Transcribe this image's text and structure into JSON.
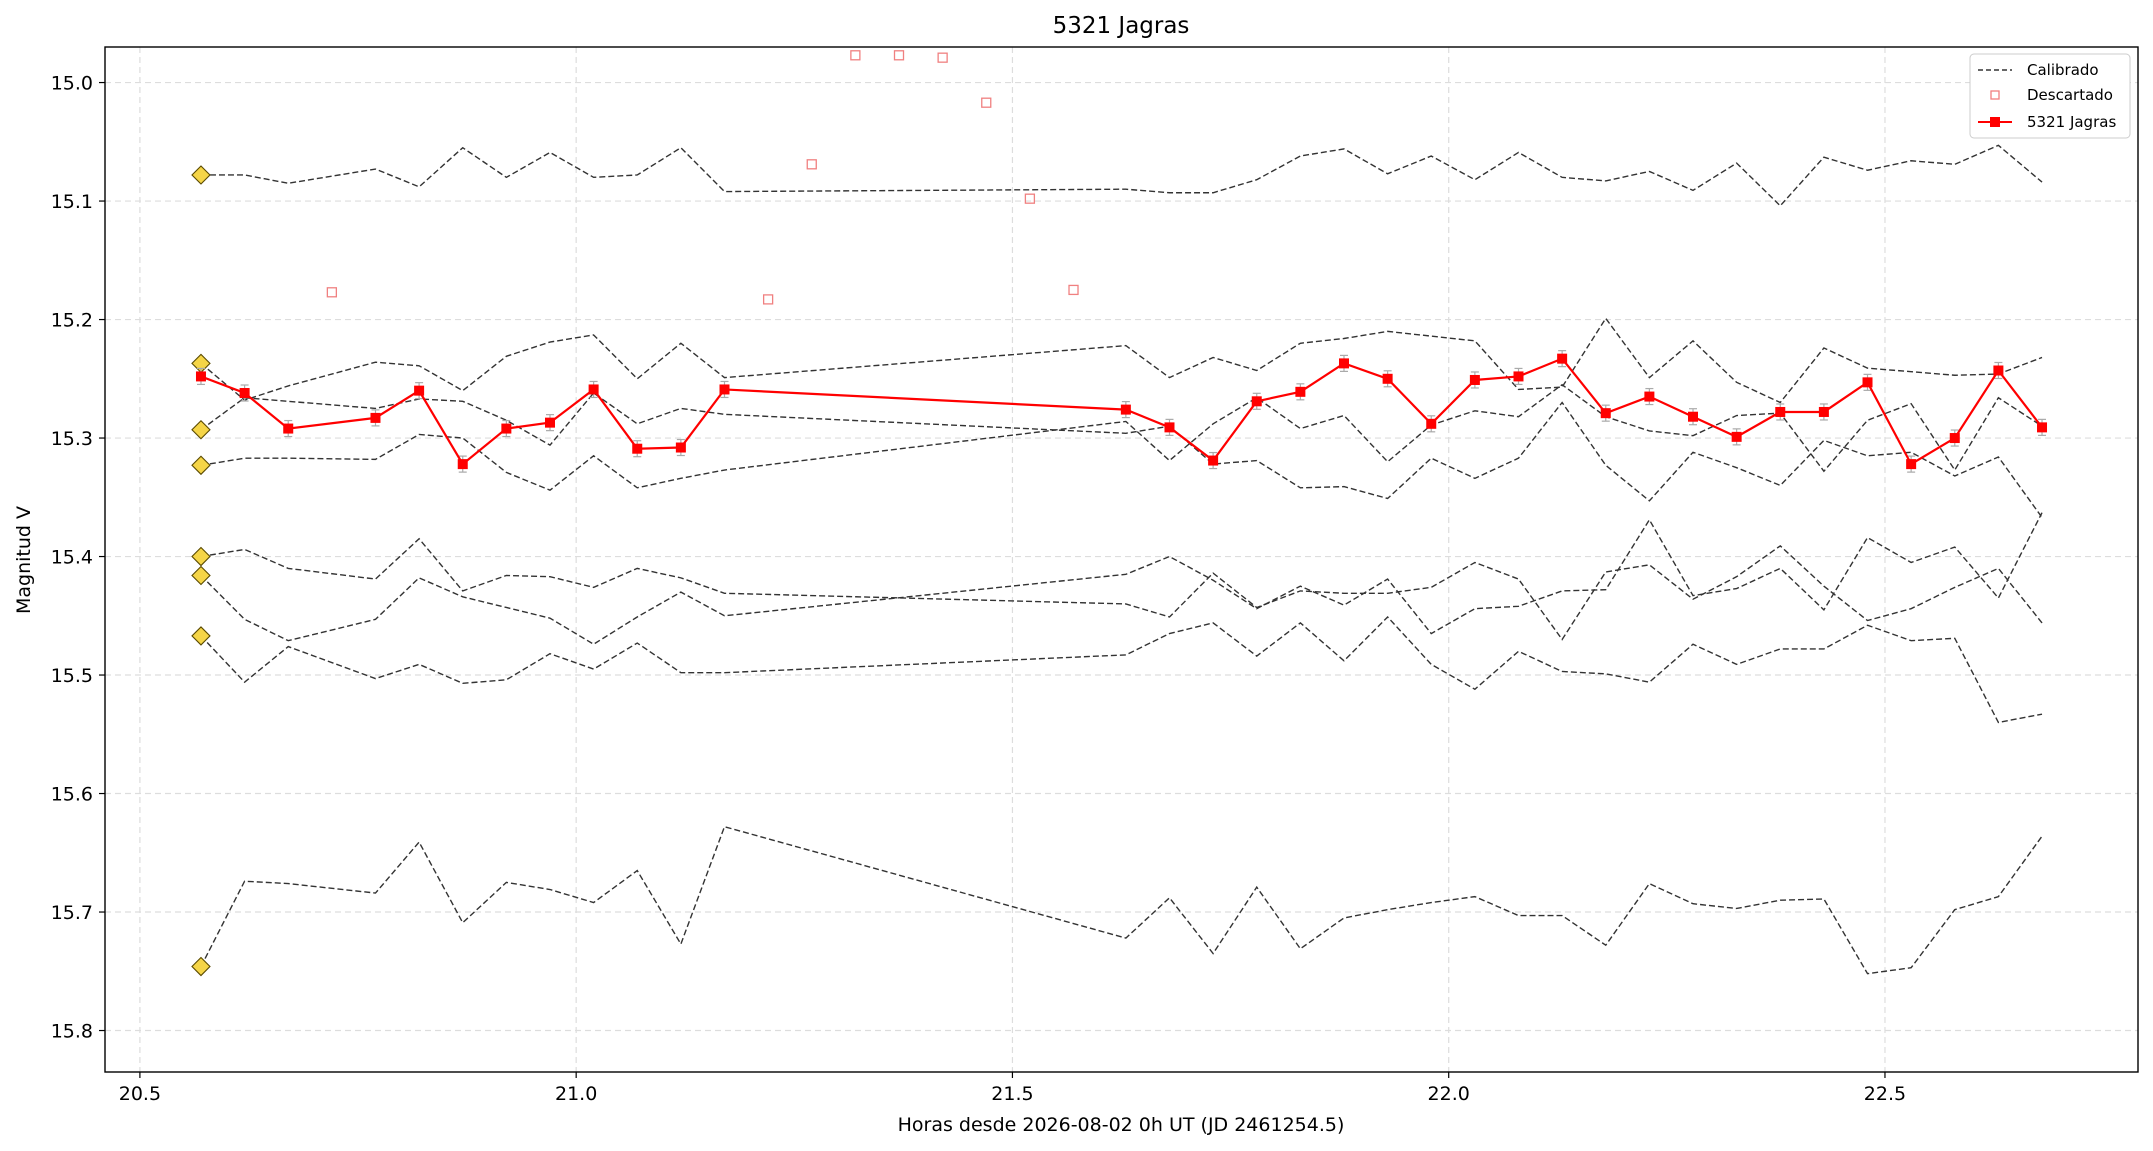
{
  "chart_data": {
    "type": "line",
    "title": "5321 Jagras",
    "xlabel": "Horas desde 2026-08-02 0h UT (JD 2461254.5)",
    "ylabel": "Magnitud V",
    "xlim": [
      20.46,
      22.79
    ],
    "ylim": [
      15.835,
      14.97
    ],
    "y_inverted": true,
    "grid": true,
    "legend_position": "top-right",
    "xticks": [
      "20.5",
      "21.0",
      "21.5",
      "22.0",
      "22.5"
    ],
    "yticks": [
      "15.0",
      "15.1",
      "15.2",
      "15.3",
      "15.4",
      "15.5",
      "15.6",
      "15.7",
      "15.8"
    ],
    "colors": {
      "target": "#ff0000",
      "calibrated": "#333333",
      "discarded": "#f08080",
      "marker": "#f5d547"
    },
    "legend": {
      "calibrated": "Calibrado",
      "discarded": "Descartado",
      "target": "5321 Jagras"
    },
    "x": [
      20.57,
      20.62,
      20.67,
      20.77,
      20.82,
      20.87,
      20.92,
      20.97,
      21.02,
      21.07,
      21.12,
      21.17,
      21.63,
      21.68,
      21.73,
      21.78,
      21.83,
      21.88,
      21.93,
      21.98,
      22.03,
      22.08,
      22.13,
      22.18,
      22.23,
      22.28,
      22.33,
      22.38,
      22.43,
      22.48,
      22.53,
      22.58,
      22.63,
      22.68
    ],
    "series": [
      {
        "name": "5321 Jagras",
        "values": [
          15.248,
          15.262,
          15.292,
          15.283,
          15.26,
          15.322,
          15.292,
          15.287,
          15.259,
          15.309,
          15.308,
          15.259,
          15.276,
          15.291,
          15.319,
          15.269,
          15.261,
          15.237,
          15.25,
          15.288,
          15.251,
          15.248,
          15.233,
          15.279,
          15.265,
          15.282,
          15.299,
          15.278,
          15.278,
          15.253,
          15.322,
          15.3,
          15.243,
          15.291
        ]
      }
    ],
    "calibrated": [
      [
        15.078,
        15.078,
        15.085,
        15.073,
        15.088,
        15.055,
        15.08,
        15.059,
        15.08,
        15.078,
        15.055,
        15.092,
        15.09,
        15.093,
        15.093,
        15.082,
        15.062,
        15.056,
        15.077,
        15.062,
        15.082,
        15.059,
        15.08,
        15.083,
        15.075,
        15.091,
        15.068,
        15.104,
        15.063,
        15.074,
        15.066,
        15.069,
        15.053,
        15.084
      ],
      [
        15.237,
        15.268,
        15.256,
        15.236,
        15.239,
        15.26,
        15.231,
        15.219,
        15.213,
        15.25,
        15.22,
        15.249,
        15.222,
        15.249,
        15.232,
        15.243,
        15.22,
        15.216,
        15.21,
        15.214,
        15.218,
        15.259,
        15.257,
        15.199,
        15.249,
        15.218,
        15.253,
        15.27,
        15.224,
        15.241,
        15.244,
        15.247,
        15.246,
        15.232
      ],
      [
        15.293,
        15.266,
        15.269,
        15.275,
        15.267,
        15.269,
        15.285,
        15.306,
        15.262,
        15.288,
        15.275,
        15.28,
        15.296,
        15.29,
        15.322,
        15.319,
        15.342,
        15.341,
        15.351,
        15.317,
        15.334,
        15.317,
        15.27,
        15.323,
        15.353,
        15.312,
        15.325,
        15.34,
        15.302,
        15.315,
        15.312,
        15.332,
        15.316,
        15.367
      ],
      [
        15.323,
        15.317,
        15.317,
        15.318,
        15.297,
        15.3,
        15.329,
        15.344,
        15.315,
        15.342,
        15.334,
        15.327,
        15.286,
        15.319,
        15.288,
        15.266,
        15.292,
        15.281,
        15.32,
        15.289,
        15.277,
        15.282,
        15.255,
        15.282,
        15.294,
        15.298,
        15.281,
        15.279,
        15.328,
        15.285,
        15.271,
        15.327,
        15.266,
        15.29
      ],
      [
        15.4,
        15.394,
        15.41,
        15.419,
        15.385,
        15.429,
        15.416,
        15.417,
        15.426,
        15.41,
        15.418,
        15.431,
        15.44,
        15.451,
        15.414,
        15.443,
        15.429,
        15.431,
        15.431,
        15.426,
        15.405,
        15.419,
        15.47,
        15.413,
        15.407,
        15.436,
        15.417,
        15.391,
        15.425,
        15.454,
        15.444,
        15.426,
        15.41,
        15.456
      ],
      [
        15.416,
        15.453,
        15.471,
        15.453,
        15.418,
        15.434,
        15.443,
        15.452,
        15.474,
        15.451,
        15.43,
        15.45,
        15.415,
        15.4,
        15.42,
        15.444,
        15.425,
        15.441,
        15.419,
        15.465,
        15.444,
        15.442,
        15.429,
        15.428,
        15.369,
        15.433,
        15.427,
        15.41,
        15.445,
        15.384,
        15.405,
        15.392,
        15.435,
        15.363
      ],
      [
        15.467,
        15.506,
        15.476,
        15.503,
        15.491,
        15.507,
        15.504,
        15.482,
        15.495,
        15.473,
        15.498,
        15.498,
        15.483,
        15.465,
        15.456,
        15.484,
        15.456,
        15.488,
        15.451,
        15.491,
        15.512,
        15.48,
        15.497,
        15.499,
        15.506,
        15.474,
        15.491,
        15.478,
        15.478,
        15.458,
        15.471,
        15.469,
        15.54,
        15.533
      ],
      [
        15.746,
        15.674,
        15.676,
        15.684,
        15.641,
        15.709,
        15.675,
        15.681,
        15.692,
        15.665,
        15.727,
        15.628,
        15.722,
        15.688,
        15.735,
        15.679,
        15.731,
        15.705,
        15.698,
        15.692,
        15.687,
        15.703,
        15.703,
        15.728,
        15.676,
        15.693,
        15.697,
        15.69,
        15.689,
        15.752,
        15.747,
        15.698,
        15.687,
        15.636
      ]
    ],
    "discarded": [
      {
        "x": 20.72,
        "y": 15.177
      },
      {
        "x": 21.22,
        "y": 15.183
      },
      {
        "x": 21.27,
        "y": 15.069
      },
      {
        "x": 21.32,
        "y": 14.977
      },
      {
        "x": 21.37,
        "y": 14.977
      },
      {
        "x": 21.42,
        "y": 14.979
      },
      {
        "x": 21.47,
        "y": 15.017
      },
      {
        "x": 21.52,
        "y": 15.098
      },
      {
        "x": 21.57,
        "y": 15.175
      }
    ]
  }
}
